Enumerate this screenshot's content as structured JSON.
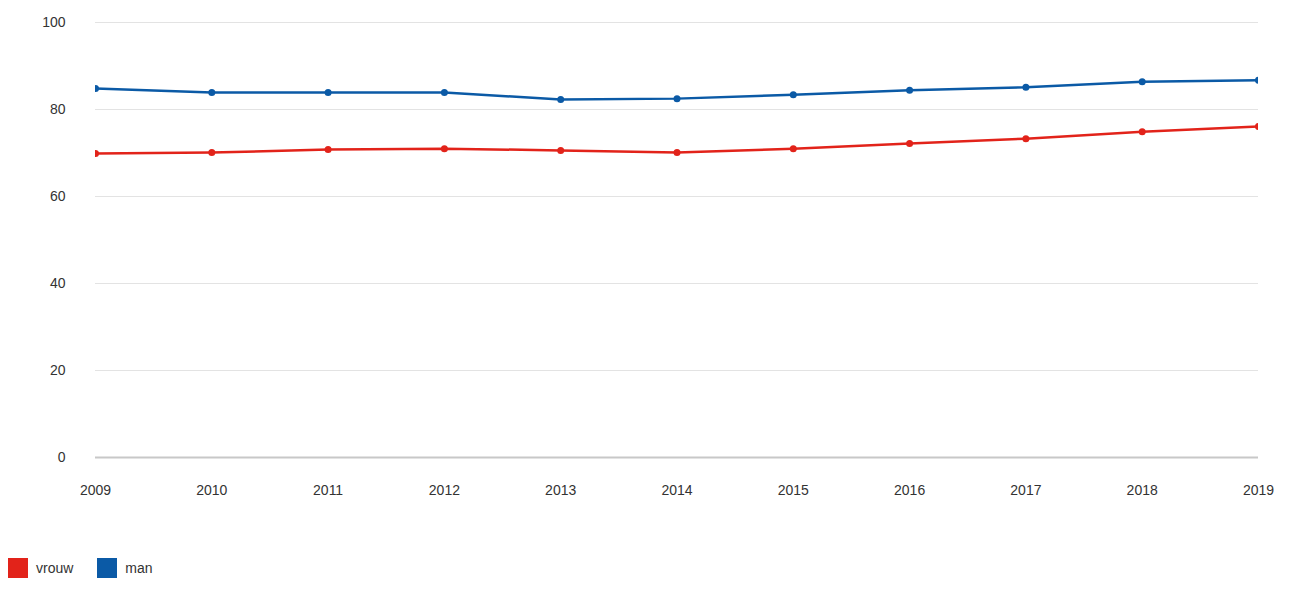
{
  "chart_data": {
    "type": "line",
    "x": [
      2009,
      2010,
      2011,
      2012,
      2013,
      2014,
      2015,
      2016,
      2017,
      2018,
      2019
    ],
    "series": [
      {
        "name": "vrouw",
        "color": "#e2231a",
        "marker": "circle",
        "values": [
          69.9,
          70.1,
          70.8,
          71.0,
          70.6,
          70.1,
          71.0,
          72.2,
          73.3,
          74.9,
          76.1
        ]
      },
      {
        "name": "man",
        "color": "#0b5aa6",
        "marker": "circle",
        "values": [
          84.8,
          83.9,
          83.9,
          83.9,
          82.3,
          82.5,
          83.4,
          84.4,
          85.1,
          86.4,
          86.7
        ]
      }
    ],
    "xlim": [
      2009,
      2019
    ],
    "xticks": [
      2009,
      2010,
      2011,
      2012,
      2013,
      2014,
      2015,
      2016,
      2017,
      2018,
      2019
    ],
    "ylim": [
      0,
      100
    ],
    "yticks": [
      0,
      20,
      40,
      60,
      80,
      100
    ],
    "grid": true,
    "legend": "bottom-left"
  }
}
